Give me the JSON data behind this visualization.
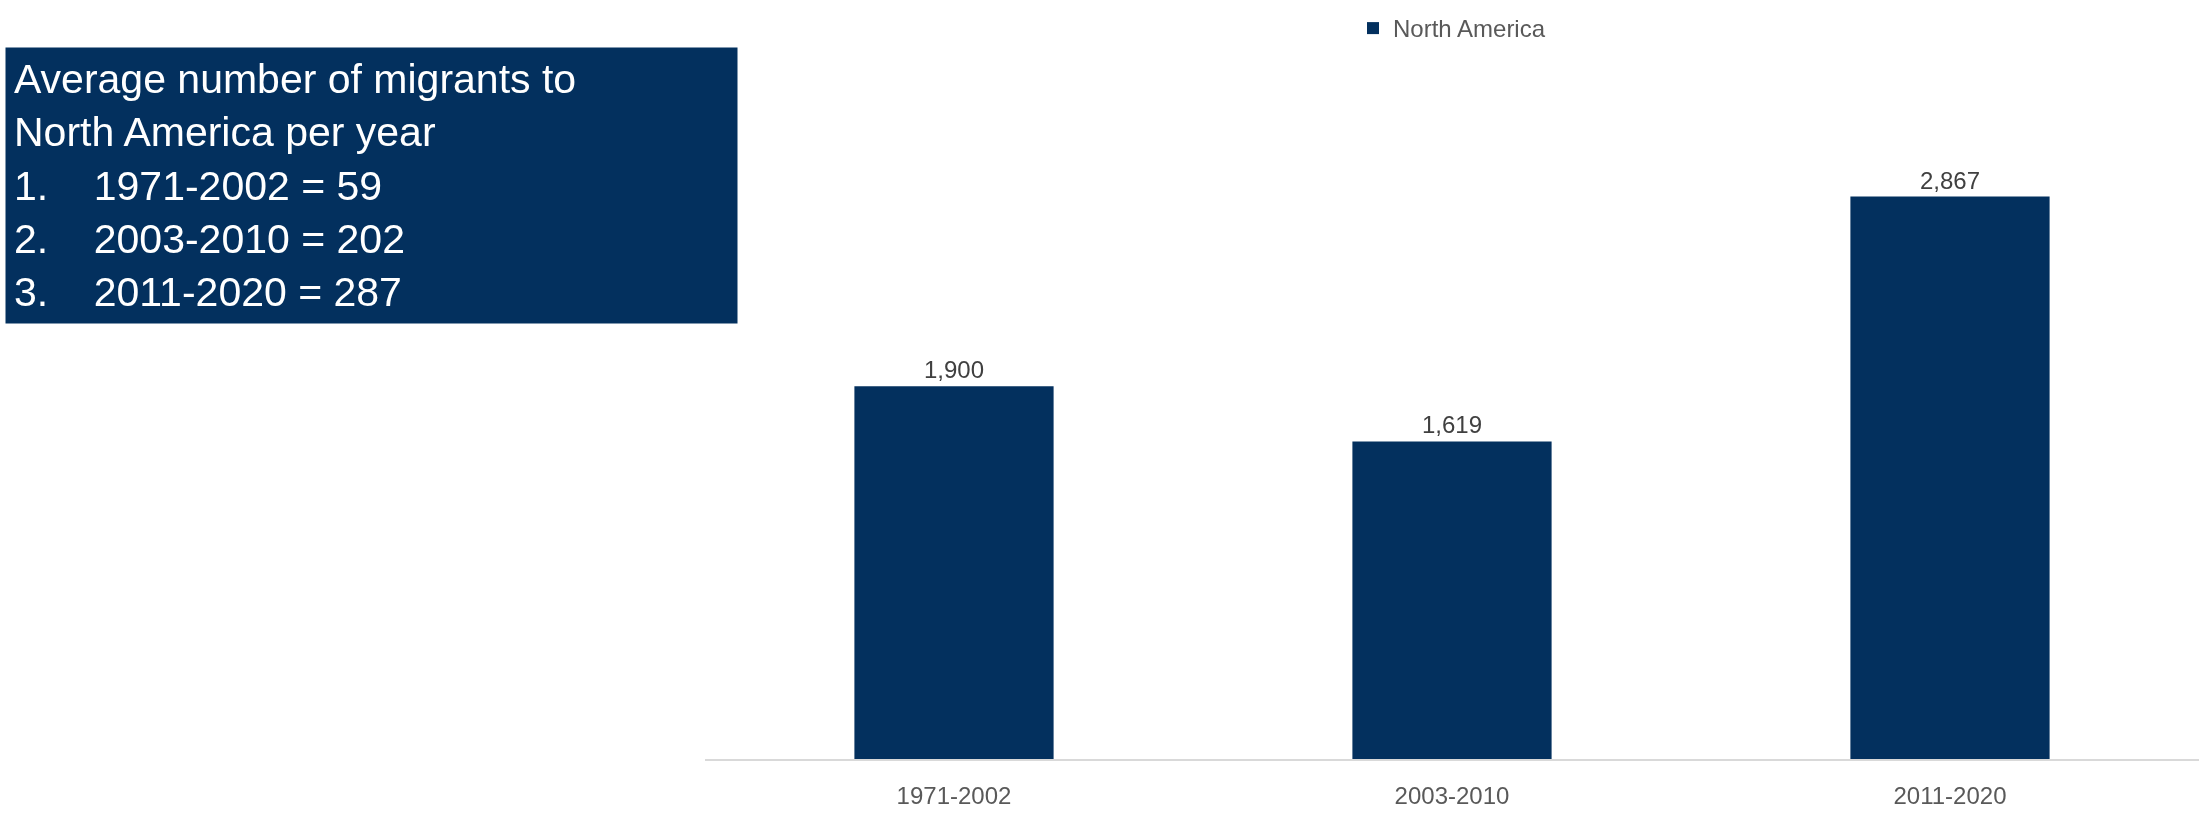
{
  "chart_data": {
    "type": "bar",
    "categories": [
      "1971-2002",
      "2003-2010",
      "2011-2020"
    ],
    "series": [
      {
        "name": "North America",
        "color": "#03305e",
        "values": [
          1900,
          1619,
          2867
        ],
        "value_labels": [
          "1,900",
          "1,619",
          "2,867"
        ]
      }
    ],
    "tick_labels": "x",
    "legend": "top",
    "annotations": [
      "Average number of migrants to\nNorth America per year\n1.   1971-2002 = 59\n2.   2003-2010 = 202\n3.   2011-2020 = 287"
    ]
  }
}
